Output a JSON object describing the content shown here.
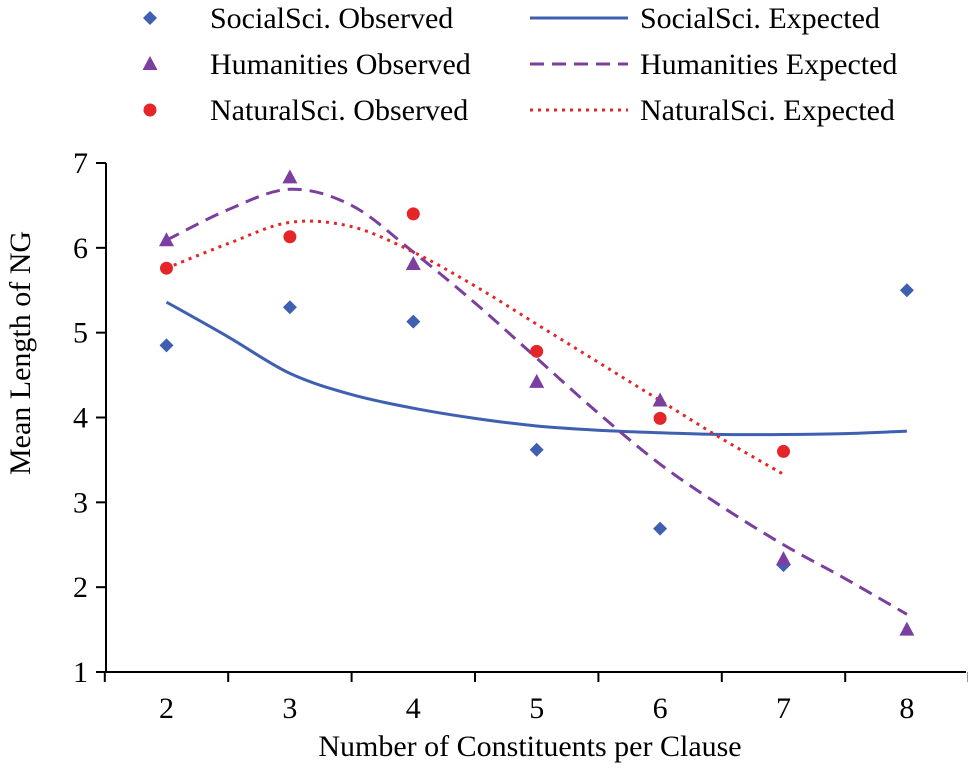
{
  "chart_data": {
    "type": "scatter",
    "title": "",
    "xlabel": "Number of  Constituents per Clause",
    "ylabel": "Mean Length of NG",
    "xlim": [
      1.5,
      8.5
    ],
    "ylim": [
      1,
      7
    ],
    "xticks": [
      2,
      3,
      4,
      5,
      6,
      7,
      8
    ],
    "yticks": [
      1,
      2,
      3,
      4,
      5,
      6,
      7
    ],
    "grid": false,
    "legend_position": "top",
    "x": [
      2,
      3,
      4,
      5,
      6,
      7,
      8
    ],
    "series": [
      {
        "name": "SocialSci. Observed",
        "kind": "observed",
        "marker": "diamond",
        "color": "#3f5fb0",
        "x": [
          2,
          3,
          4,
          5,
          6,
          7,
          8
        ],
        "values": [
          4.85,
          5.3,
          5.13,
          3.62,
          2.69,
          2.26,
          5.5
        ]
      },
      {
        "name": "SocialSci. Expected",
        "kind": "expected",
        "line_style": "solid",
        "color": "#3f5fb0",
        "x": [
          2,
          2.5,
          3,
          3.5,
          4,
          4.5,
          5,
          5.5,
          6,
          6.5,
          7,
          7.5,
          8
        ],
        "values": [
          5.36,
          4.95,
          4.52,
          4.27,
          4.11,
          3.99,
          3.9,
          3.85,
          3.82,
          3.8,
          3.8,
          3.81,
          3.84
        ]
      },
      {
        "name": "Humanities Observed",
        "kind": "observed",
        "marker": "triangle",
        "color": "#7b3fa0",
        "x": [
          2,
          3,
          4,
          5,
          6,
          7,
          8
        ],
        "values": [
          6.09,
          6.83,
          5.81,
          4.42,
          4.2,
          2.33,
          1.5
        ]
      },
      {
        "name": "Humanities Expected",
        "kind": "expected",
        "line_style": "dashed",
        "color": "#7b3fa0",
        "x": [
          2,
          2.5,
          3,
          3.5,
          4,
          4.5,
          5,
          5.5,
          6,
          6.5,
          7,
          7.5,
          8
        ],
        "values": [
          6.09,
          6.45,
          6.69,
          6.5,
          5.95,
          5.35,
          4.7,
          4.05,
          3.45,
          2.95,
          2.5,
          2.1,
          1.68
        ]
      },
      {
        "name": "NaturalSci. Observed",
        "kind": "observed",
        "marker": "circle",
        "color": "#e52629",
        "x": [
          2,
          3,
          4,
          5,
          6,
          7
        ],
        "values": [
          5.76,
          6.13,
          6.4,
          4.78,
          3.99,
          3.6
        ]
      },
      {
        "name": "NaturalSci. Expected",
        "kind": "expected",
        "line_style": "dotted",
        "color": "#e52629",
        "x": [
          2,
          2.5,
          3,
          3.5,
          4,
          4.5,
          5,
          5.5,
          6,
          6.5,
          7
        ],
        "values": [
          5.76,
          6.05,
          6.3,
          6.25,
          5.95,
          5.55,
          5.1,
          4.65,
          4.2,
          3.75,
          3.33
        ]
      }
    ]
  }
}
